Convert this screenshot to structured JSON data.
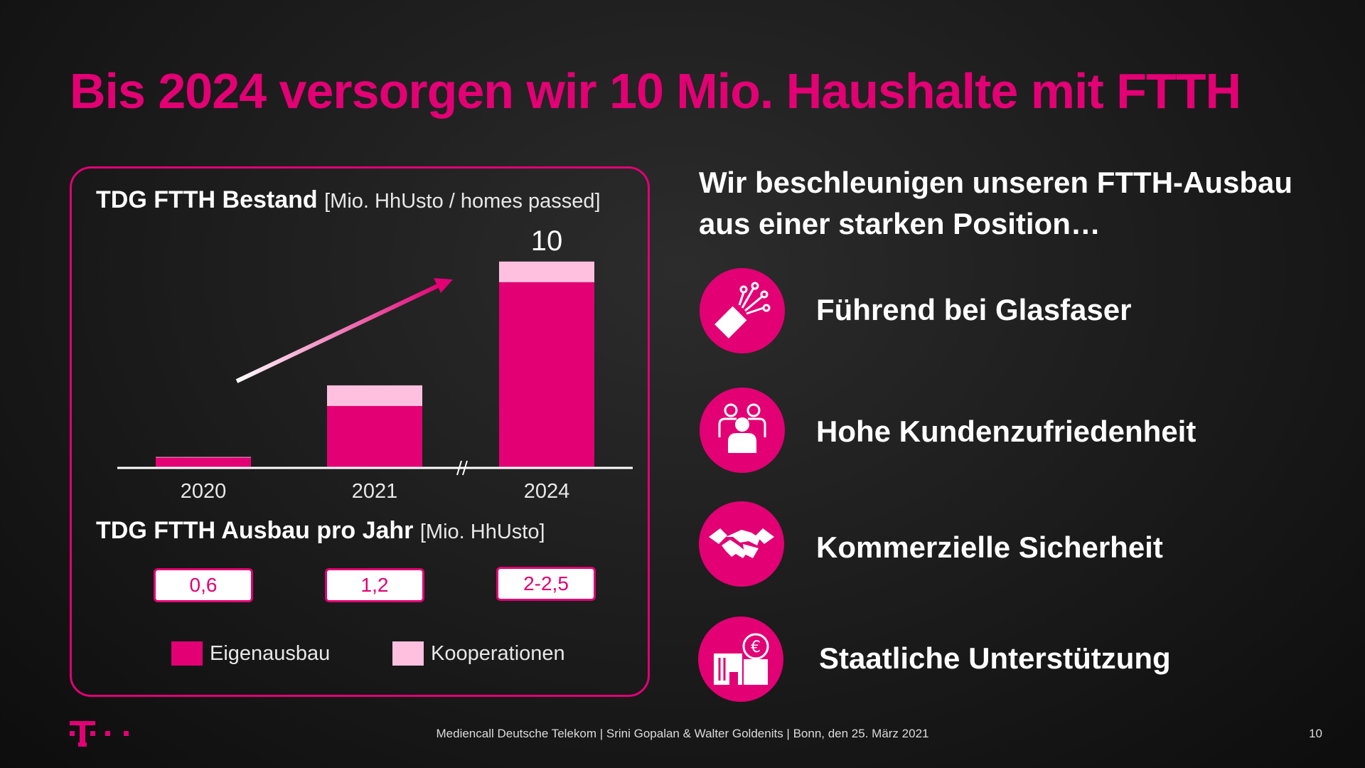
{
  "title": "Bis 2024 versorgen wir 10 Mio. Haushalte mit FTTH",
  "chart_heading": {
    "bold": "TDG FTTH Bestand",
    "unit": "[Mio. HhUsto / homes passed]"
  },
  "chart_data": {
    "type": "bar",
    "stacked": true,
    "categories": [
      "2020",
      "2021",
      "2024"
    ],
    "series": [
      {
        "name": "Eigenausbau",
        "color": "#e20074",
        "values": [
          0.5,
          3.0,
          9.0
        ]
      },
      {
        "name": "Kooperationen",
        "color": "#ffc0e0",
        "values": [
          0.03,
          1.0,
          1.0
        ]
      }
    ],
    "totals_labels": [
      "",
      "",
      "10"
    ],
    "ylim": [
      0,
      10.2
    ],
    "axis_break_between": [
      "2021",
      "2024"
    ],
    "trend_arrow": {
      "from_category": "2020",
      "to_category": "2024"
    },
    "title": "TDG FTTH Bestand [Mio. HhUsto / homes passed]",
    "xlabel": "",
    "ylabel": ""
  },
  "sub_heading": {
    "bold": "TDG FTTH Ausbau pro Jahr",
    "unit": "[Mio. HhUsto]"
  },
  "annual_rates": [
    "0,6",
    "1,2",
    "2-2,5"
  ],
  "legend": [
    {
      "label": "Eigenausbau",
      "color": "#e20074"
    },
    {
      "label": "Kooperationen",
      "color": "#ffc0e0"
    }
  ],
  "right_heading": "Wir beschleunigen unseren FTTH-Ausbau aus einer starken Position…",
  "features": [
    {
      "label": "Führend bei Glasfaser",
      "icon": "fiber-cable-icon"
    },
    {
      "label": "Hohe Kundenzufriedenheit",
      "icon": "customers-icon"
    },
    {
      "label": "Kommerzielle Sicherheit",
      "icon": "handshake-icon"
    },
    {
      "label": "Staatliche Unterstützung",
      "icon": "government-euro-icon"
    }
  ],
  "footer": {
    "text": "Mediencall Deutsche Telekom |  Srini Gopalan & Walter Goldenits | Bonn, den 25. März 2021",
    "page_number": "10",
    "logo": "telekom-logo-icon"
  },
  "colors": {
    "magenta": "#e20074",
    "light_pink": "#ffc0e0",
    "background": "#1e1e1e"
  }
}
